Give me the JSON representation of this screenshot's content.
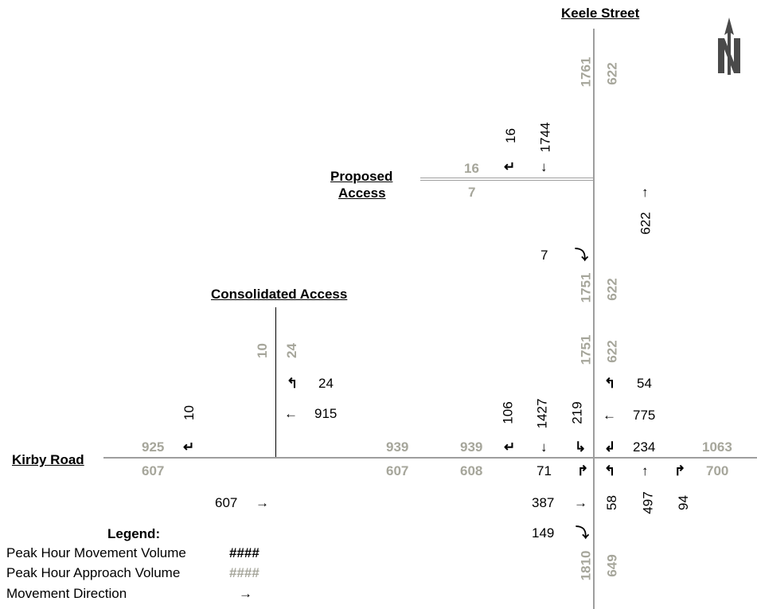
{
  "colors": {
    "movement": "#000000",
    "approach": "#a6a69b"
  },
  "streets": {
    "keele": "Keele Street",
    "kirby": "Kirby Road",
    "proposed_l1": "Proposed",
    "proposed_l2": "Access",
    "consolidated": "Consolidated Access"
  },
  "keele_north": {
    "approach_sb": "1761",
    "approach_nb": "622",
    "right_vol": "16",
    "through_vol": "1744",
    "access_approach_top": "16",
    "access_approach_bottom": "7"
  },
  "keele_mid": {
    "nb_through": "622",
    "access_in": "7",
    "approach_sb": "1751",
    "approach_nb": "622",
    "approach_sb_2": "1751",
    "approach_nb_2": "622"
  },
  "intersection_main": {
    "sb_right": "106",
    "sb_through": "1427",
    "sb_left": "219",
    "wb_right": "54",
    "wb_through": "775",
    "wb_left": "234",
    "eb_left": "71",
    "eb_through": "387",
    "eb_right": "149",
    "nb_left": "58",
    "nb_through": "497",
    "nb_right": "94",
    "west_approach_in": "939",
    "west_approach_out": "608",
    "east_approach_in": "1063",
    "east_approach_out": "700",
    "south_approach_sb": "1810",
    "south_approach_nb": "649"
  },
  "consolidated": {
    "approach_left": "10",
    "approach_right": "24",
    "wb_right_vol": "24",
    "wb_through_vol": "915",
    "eb_right_vol": "10",
    "eb_through_vol": "607",
    "west_approach_top": "925",
    "west_approach_bottom": "607",
    "east_approach_top": "939",
    "east_approach_bottom": "607"
  },
  "legend": {
    "title": "Legend:",
    "movement_label": "Peak Hour Movement Volume",
    "movement_sample": "####",
    "approach_label": "Peak Hour Approach Volume",
    "approach_sample": "####",
    "direction_label": "Movement Direction",
    "direction_sample": "→"
  },
  "icons": {
    "north_arrow": "north-arrow-icon"
  }
}
